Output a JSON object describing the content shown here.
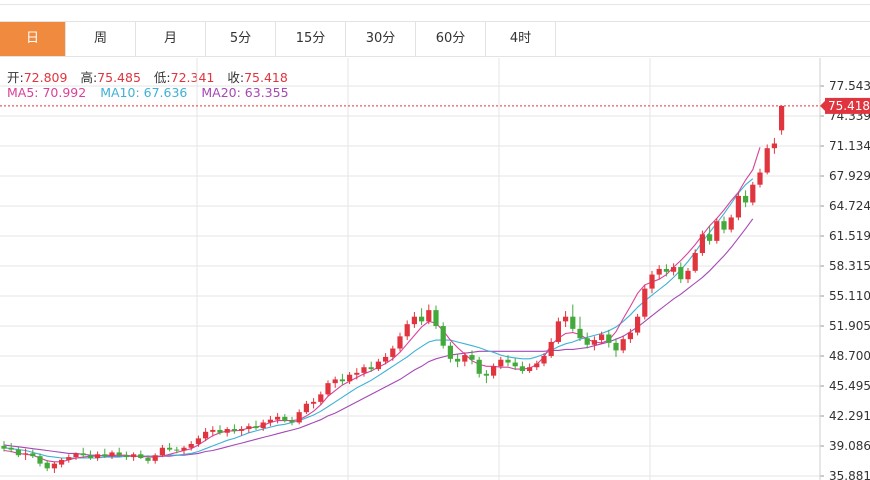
{
  "tabs": [
    {
      "label": "日",
      "active": true
    },
    {
      "label": "周",
      "active": false
    },
    {
      "label": "月",
      "active": false
    },
    {
      "label": "5分",
      "active": false
    },
    {
      "label": "15分",
      "active": false
    },
    {
      "label": "30分",
      "active": false
    },
    {
      "label": "60分",
      "active": false
    },
    {
      "label": "4时",
      "active": false
    }
  ],
  "ohlc": {
    "open_label": "开:",
    "open": "72.809",
    "high_label": "高:",
    "high": "75.485",
    "low_label": "低:",
    "low": "72.341",
    "close_label": "收:",
    "close": "75.418"
  },
  "ma_readout": {
    "ma5": "MA5: 70.992",
    "ma10": "MA10: 67.636",
    "ma20": "MA20: 63.355"
  },
  "chart_data": {
    "type": "candlestick",
    "y_ticks": [
      "77.543",
      "74.339",
      "71.134",
      "67.929",
      "64.724",
      "61.519",
      "58.315",
      "55.110",
      "51.905",
      "48.700",
      "45.495",
      "42.291",
      "39.086",
      "35.881"
    ],
    "ylim": [
      35.881,
      77.543
    ],
    "last_price_label": "75.418",
    "grid": true,
    "colors": {
      "up": "#e0353f",
      "down": "#43a93b",
      "ma5": "#d9429a",
      "ma10": "#3fb1d6",
      "ma20": "#a549b5",
      "last_price": "#e0353f",
      "grid": "#e6e6e6"
    },
    "candles": [
      {
        "o": 39.1,
        "h": 39.6,
        "l": 38.5,
        "c": 38.8
      },
      {
        "o": 38.9,
        "h": 39.4,
        "l": 38.4,
        "c": 38.7
      },
      {
        "o": 38.7,
        "h": 39.0,
        "l": 37.9,
        "c": 38.1
      },
      {
        "o": 38.2,
        "h": 38.8,
        "l": 37.6,
        "c": 38.3
      },
      {
        "o": 38.3,
        "h": 38.7,
        "l": 37.8,
        "c": 38.0
      },
      {
        "o": 38.0,
        "h": 38.3,
        "l": 36.9,
        "c": 37.2
      },
      {
        "o": 37.3,
        "h": 37.6,
        "l": 36.4,
        "c": 36.7
      },
      {
        "o": 36.7,
        "h": 37.4,
        "l": 36.2,
        "c": 37.2
      },
      {
        "o": 37.1,
        "h": 37.8,
        "l": 36.8,
        "c": 37.6
      },
      {
        "o": 37.6,
        "h": 38.2,
        "l": 37.3,
        "c": 37.9
      },
      {
        "o": 37.9,
        "h": 38.4,
        "l": 37.6,
        "c": 38.3
      },
      {
        "o": 38.3,
        "h": 38.9,
        "l": 37.9,
        "c": 38.1
      },
      {
        "o": 38.1,
        "h": 38.6,
        "l": 37.6,
        "c": 37.8
      },
      {
        "o": 37.8,
        "h": 38.5,
        "l": 37.5,
        "c": 38.2
      },
      {
        "o": 38.2,
        "h": 38.8,
        "l": 37.8,
        "c": 38.0
      },
      {
        "o": 38.0,
        "h": 38.6,
        "l": 37.7,
        "c": 38.4
      },
      {
        "o": 38.4,
        "h": 38.9,
        "l": 37.9,
        "c": 38.1
      },
      {
        "o": 38.1,
        "h": 38.5,
        "l": 37.6,
        "c": 37.9
      },
      {
        "o": 37.9,
        "h": 38.4,
        "l": 37.5,
        "c": 38.2
      },
      {
        "o": 38.2,
        "h": 38.6,
        "l": 37.7,
        "c": 37.8
      },
      {
        "o": 37.8,
        "h": 38.1,
        "l": 37.2,
        "c": 37.5
      },
      {
        "o": 37.5,
        "h": 38.3,
        "l": 37.2,
        "c": 38.1
      },
      {
        "o": 38.1,
        "h": 39.2,
        "l": 37.9,
        "c": 38.9
      },
      {
        "o": 38.9,
        "h": 39.4,
        "l": 38.5,
        "c": 38.7
      },
      {
        "o": 38.7,
        "h": 39.0,
        "l": 38.3,
        "c": 38.6
      },
      {
        "o": 38.6,
        "h": 39.1,
        "l": 38.2,
        "c": 38.9
      },
      {
        "o": 38.9,
        "h": 39.6,
        "l": 38.6,
        "c": 39.3
      },
      {
        "o": 39.3,
        "h": 40.2,
        "l": 39.0,
        "c": 39.9
      },
      {
        "o": 39.9,
        "h": 41.0,
        "l": 39.6,
        "c": 40.6
      },
      {
        "o": 40.6,
        "h": 41.2,
        "l": 40.1,
        "c": 40.8
      },
      {
        "o": 40.8,
        "h": 41.3,
        "l": 40.3,
        "c": 40.5
      },
      {
        "o": 40.5,
        "h": 41.1,
        "l": 40.1,
        "c": 40.9
      },
      {
        "o": 40.9,
        "h": 41.4,
        "l": 40.4,
        "c": 40.7
      },
      {
        "o": 40.7,
        "h": 41.2,
        "l": 40.2,
        "c": 40.9
      },
      {
        "o": 40.9,
        "h": 41.5,
        "l": 40.5,
        "c": 41.2
      },
      {
        "o": 41.2,
        "h": 41.8,
        "l": 40.8,
        "c": 41.0
      },
      {
        "o": 41.0,
        "h": 41.9,
        "l": 40.7,
        "c": 41.6
      },
      {
        "o": 41.6,
        "h": 42.3,
        "l": 41.2,
        "c": 41.9
      },
      {
        "o": 41.9,
        "h": 42.6,
        "l": 41.5,
        "c": 42.2
      },
      {
        "o": 42.2,
        "h": 42.5,
        "l": 41.6,
        "c": 41.8
      },
      {
        "o": 41.8,
        "h": 42.2,
        "l": 41.3,
        "c": 41.6
      },
      {
        "o": 41.6,
        "h": 43.0,
        "l": 41.4,
        "c": 42.7
      },
      {
        "o": 42.7,
        "h": 43.9,
        "l": 42.5,
        "c": 43.6
      },
      {
        "o": 43.6,
        "h": 44.2,
        "l": 43.1,
        "c": 43.8
      },
      {
        "o": 43.8,
        "h": 44.9,
        "l": 43.5,
        "c": 44.6
      },
      {
        "o": 44.6,
        "h": 46.1,
        "l": 44.4,
        "c": 45.8
      },
      {
        "o": 45.8,
        "h": 46.5,
        "l": 45.3,
        "c": 46.2
      },
      {
        "o": 46.2,
        "h": 46.8,
        "l": 45.6,
        "c": 46.0
      },
      {
        "o": 46.0,
        "h": 47.0,
        "l": 45.7,
        "c": 46.7
      },
      {
        "o": 46.7,
        "h": 47.4,
        "l": 46.2,
        "c": 46.9
      },
      {
        "o": 46.9,
        "h": 47.8,
        "l": 46.5,
        "c": 47.5
      },
      {
        "o": 47.5,
        "h": 48.1,
        "l": 47.0,
        "c": 47.3
      },
      {
        "o": 47.3,
        "h": 48.4,
        "l": 47.1,
        "c": 48.1
      },
      {
        "o": 48.1,
        "h": 49.0,
        "l": 47.8,
        "c": 48.6
      },
      {
        "o": 48.6,
        "h": 49.8,
        "l": 48.2,
        "c": 49.5
      },
      {
        "o": 49.5,
        "h": 51.2,
        "l": 49.2,
        "c": 50.8
      },
      {
        "o": 50.8,
        "h": 52.5,
        "l": 50.4,
        "c": 52.1
      },
      {
        "o": 52.1,
        "h": 53.4,
        "l": 51.7,
        "c": 52.9
      },
      {
        "o": 52.9,
        "h": 53.8,
        "l": 52.0,
        "c": 52.4
      },
      {
        "o": 52.4,
        "h": 54.2,
        "l": 52.1,
        "c": 53.6
      },
      {
        "o": 53.6,
        "h": 54.1,
        "l": 51.6,
        "c": 51.9
      },
      {
        "o": 51.9,
        "h": 52.3,
        "l": 49.5,
        "c": 49.8
      },
      {
        "o": 49.8,
        "h": 50.2,
        "l": 48.0,
        "c": 48.4
      },
      {
        "o": 48.4,
        "h": 48.9,
        "l": 47.5,
        "c": 48.1
      },
      {
        "o": 48.1,
        "h": 49.1,
        "l": 47.6,
        "c": 48.8
      },
      {
        "o": 48.8,
        "h": 49.3,
        "l": 47.8,
        "c": 48.3
      },
      {
        "o": 48.3,
        "h": 48.6,
        "l": 46.4,
        "c": 46.8
      },
      {
        "o": 46.8,
        "h": 47.2,
        "l": 45.8,
        "c": 46.6
      },
      {
        "o": 46.6,
        "h": 47.9,
        "l": 46.3,
        "c": 47.6
      },
      {
        "o": 47.6,
        "h": 48.6,
        "l": 47.3,
        "c": 48.3
      },
      {
        "o": 48.3,
        "h": 48.8,
        "l": 47.6,
        "c": 48.0
      },
      {
        "o": 48.0,
        "h": 48.5,
        "l": 47.2,
        "c": 47.6
      },
      {
        "o": 47.6,
        "h": 48.1,
        "l": 46.8,
        "c": 47.1
      },
      {
        "o": 47.1,
        "h": 47.9,
        "l": 46.9,
        "c": 47.5
      },
      {
        "o": 47.5,
        "h": 48.2,
        "l": 47.2,
        "c": 47.9
      },
      {
        "o": 47.9,
        "h": 49.0,
        "l": 47.6,
        "c": 48.7
      },
      {
        "o": 48.7,
        "h": 50.6,
        "l": 48.5,
        "c": 50.2
      },
      {
        "o": 50.2,
        "h": 52.8,
        "l": 50.0,
        "c": 52.4
      },
      {
        "o": 52.4,
        "h": 53.5,
        "l": 51.8,
        "c": 52.9
      },
      {
        "o": 52.9,
        "h": 54.2,
        "l": 51.3,
        "c": 51.6
      },
      {
        "o": 51.6,
        "h": 52.9,
        "l": 50.3,
        "c": 50.6
      },
      {
        "o": 50.6,
        "h": 51.2,
        "l": 49.5,
        "c": 49.9
      },
      {
        "o": 49.9,
        "h": 50.8,
        "l": 49.3,
        "c": 50.4
      },
      {
        "o": 50.4,
        "h": 51.3,
        "l": 50.0,
        "c": 51.0
      },
      {
        "o": 51.0,
        "h": 51.5,
        "l": 49.6,
        "c": 50.1
      },
      {
        "o": 50.1,
        "h": 50.6,
        "l": 48.6,
        "c": 49.3
      },
      {
        "o": 49.3,
        "h": 50.9,
        "l": 49.0,
        "c": 50.5
      },
      {
        "o": 50.5,
        "h": 51.6,
        "l": 50.1,
        "c": 51.2
      },
      {
        "o": 51.2,
        "h": 53.2,
        "l": 50.9,
        "c": 52.9
      },
      {
        "o": 52.9,
        "h": 56.3,
        "l": 52.6,
        "c": 55.9
      },
      {
        "o": 55.9,
        "h": 57.8,
        "l": 55.4,
        "c": 57.4
      },
      {
        "o": 57.4,
        "h": 58.4,
        "l": 56.9,
        "c": 58.0
      },
      {
        "o": 58.0,
        "h": 58.5,
        "l": 57.2,
        "c": 57.7
      },
      {
        "o": 57.7,
        "h": 58.6,
        "l": 57.3,
        "c": 58.2
      },
      {
        "o": 58.2,
        "h": 58.7,
        "l": 56.5,
        "c": 56.9
      },
      {
        "o": 56.9,
        "h": 58.1,
        "l": 56.5,
        "c": 57.8
      },
      {
        "o": 57.8,
        "h": 60.1,
        "l": 57.6,
        "c": 59.7
      },
      {
        "o": 59.7,
        "h": 62.1,
        "l": 59.4,
        "c": 61.7
      },
      {
        "o": 61.7,
        "h": 62.6,
        "l": 60.6,
        "c": 61.0
      },
      {
        "o": 61.0,
        "h": 63.4,
        "l": 60.7,
        "c": 63.1
      },
      {
        "o": 63.1,
        "h": 63.6,
        "l": 61.8,
        "c": 62.2
      },
      {
        "o": 62.2,
        "h": 63.8,
        "l": 61.9,
        "c": 63.5
      },
      {
        "o": 63.5,
        "h": 66.2,
        "l": 63.2,
        "c": 65.8
      },
      {
        "o": 65.8,
        "h": 66.4,
        "l": 64.6,
        "c": 65.1
      },
      {
        "o": 65.1,
        "h": 67.3,
        "l": 64.8,
        "c": 67.0
      },
      {
        "o": 67.0,
        "h": 68.7,
        "l": 66.7,
        "c": 68.3
      },
      {
        "o": 68.3,
        "h": 71.3,
        "l": 68.1,
        "c": 70.9
      },
      {
        "o": 70.9,
        "h": 72.0,
        "l": 70.3,
        "c": 71.4
      },
      {
        "o": 72.809,
        "h": 75.485,
        "l": 72.341,
        "c": 75.418
      }
    ],
    "ma5": [
      38.6,
      38.5,
      38.3,
      38.2,
      38.1,
      37.8,
      37.5,
      37.4,
      37.4,
      37.6,
      37.8,
      37.9,
      38.0,
      38.0,
      38.1,
      38.1,
      38.1,
      38.1,
      38.0,
      38.0,
      37.9,
      37.9,
      38.0,
      38.2,
      38.4,
      38.6,
      38.8,
      39.2,
      39.7,
      40.2,
      40.5,
      40.7,
      40.7,
      40.8,
      41.0,
      41.1,
      41.3,
      41.6,
      41.8,
      41.8,
      41.8,
      41.9,
      42.3,
      42.8,
      43.5,
      44.4,
      45.0,
      45.6,
      46.0,
      46.4,
      46.8,
      47.1,
      47.5,
      47.9,
      48.4,
      49.1,
      50.0,
      50.9,
      51.8,
      52.4,
      52.2,
      51.4,
      50.4,
      49.6,
      48.9,
      48.2,
      47.8,
      47.6,
      47.6,
      47.5,
      47.5,
      47.3,
      47.3,
      47.4,
      47.8,
      48.6,
      49.9,
      50.6,
      51.1,
      51.2,
      51.0,
      50.5,
      50.2,
      50.1,
      50.4,
      51.3,
      52.7,
      54.0,
      55.4,
      56.3,
      56.6,
      56.9,
      57.4,
      58.2,
      58.9,
      59.7,
      60.6,
      61.6,
      62.6,
      63.4,
      64.3,
      65.3,
      66.2,
      67.5,
      68.6,
      70.99
    ],
    "ma10": [
      38.9,
      38.8,
      38.7,
      38.6,
      38.4,
      38.2,
      38.0,
      37.9,
      37.8,
      37.8,
      37.8,
      37.8,
      37.8,
      37.8,
      37.9,
      37.9,
      37.9,
      38.0,
      38.0,
      38.0,
      38.0,
      38.0,
      38.0,
      38.1,
      38.1,
      38.2,
      38.3,
      38.5,
      38.8,
      39.1,
      39.4,
      39.7,
      39.9,
      40.2,
      40.5,
      40.7,
      40.9,
      41.1,
      41.3,
      41.4,
      41.6,
      41.8,
      42.1,
      42.4,
      42.8,
      43.3,
      43.8,
      44.3,
      44.8,
      45.3,
      45.7,
      46.1,
      46.6,
      47.1,
      47.6,
      48.1,
      48.6,
      49.2,
      49.7,
      50.2,
      50.4,
      50.4,
      50.4,
      50.2,
      50.0,
      49.8,
      49.6,
      49.3,
      49.1,
      48.8,
      48.6,
      48.5,
      48.4,
      48.4,
      48.6,
      48.9,
      49.3,
      49.7,
      50.0,
      50.2,
      50.5,
      50.7,
      50.9,
      51.1,
      51.4,
      51.8,
      52.4,
      53.1,
      53.9,
      54.6,
      55.2,
      55.8,
      56.4,
      57.1,
      57.9,
      58.8,
      59.8,
      60.9,
      61.9,
      62.9,
      63.9,
      65.0,
      66.1,
      67.0,
      67.636
    ],
    "ma20": [
      39.2,
      39.1,
      39.0,
      38.9,
      38.8,
      38.7,
      38.6,
      38.5,
      38.4,
      38.3,
      38.3,
      38.2,
      38.1,
      38.1,
      38.0,
      38.0,
      38.0,
      38.0,
      38.0,
      38.0,
      38.0,
      38.0,
      38.0,
      38.0,
      38.1,
      38.1,
      38.2,
      38.3,
      38.5,
      38.6,
      38.8,
      39.0,
      39.2,
      39.4,
      39.6,
      39.8,
      40.0,
      40.2,
      40.4,
      40.6,
      40.8,
      41.0,
      41.3,
      41.6,
      41.9,
      42.3,
      42.6,
      43.0,
      43.4,
      43.8,
      44.2,
      44.6,
      45.0,
      45.4,
      45.8,
      46.2,
      46.7,
      47.2,
      47.6,
      48.1,
      48.4,
      48.6,
      48.8,
      48.9,
      49.0,
      49.1,
      49.2,
      49.2,
      49.2,
      49.2,
      49.2,
      49.2,
      49.2,
      49.2,
      49.2,
      49.2,
      49.3,
      49.3,
      49.4,
      49.4,
      49.5,
      49.6,
      49.8,
      50.0,
      50.2,
      50.5,
      50.8,
      51.3,
      51.8,
      52.4,
      53.0,
      53.6,
      54.2,
      54.8,
      55.3,
      55.9,
      56.5,
      57.1,
      57.8,
      58.6,
      59.4,
      60.3,
      61.3,
      62.3,
      63.355
    ]
  }
}
